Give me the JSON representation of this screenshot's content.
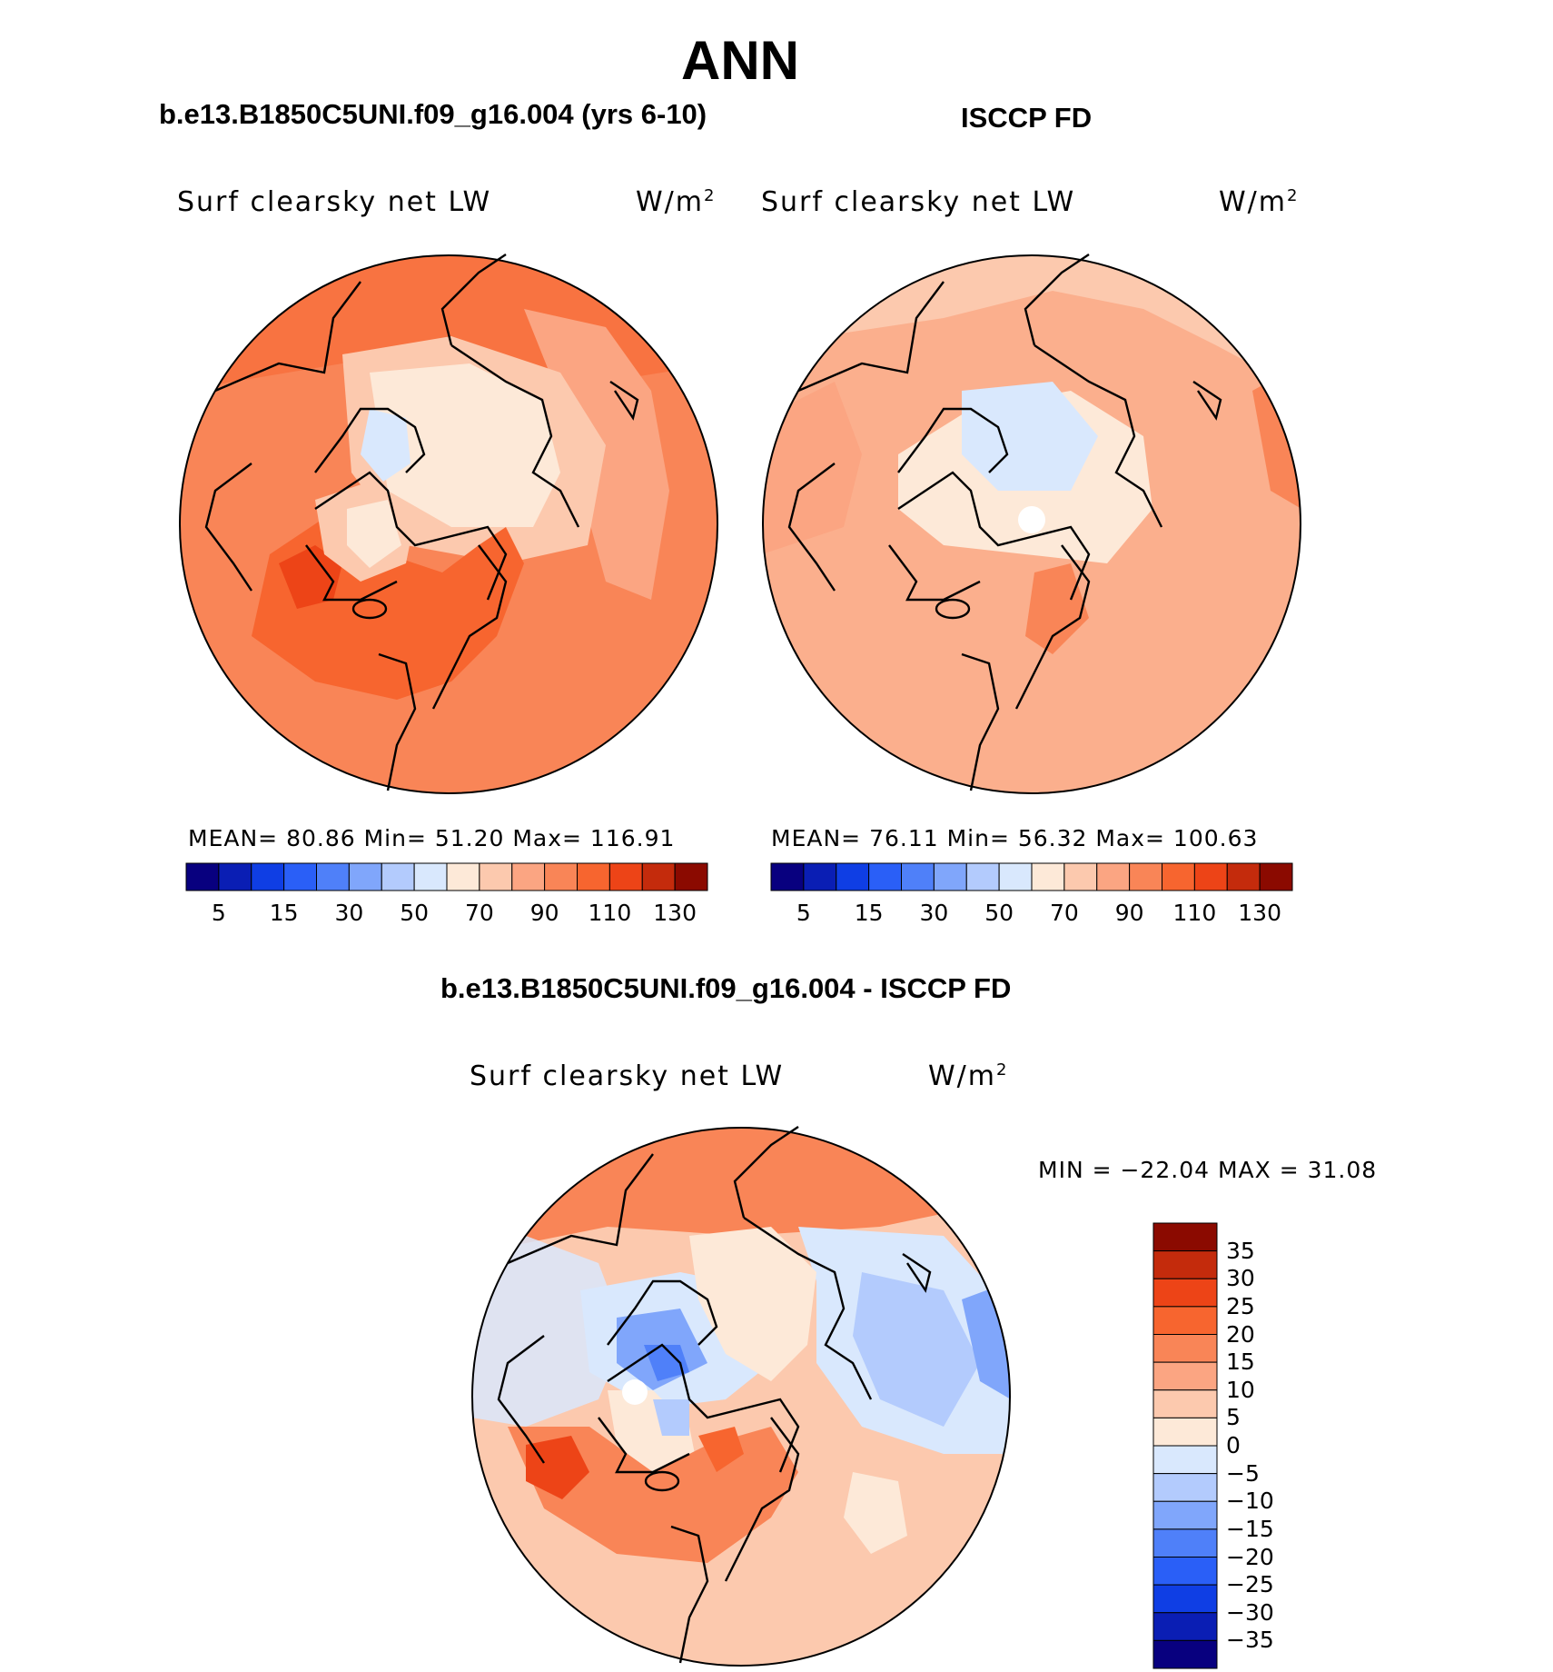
{
  "title": "ANN",
  "colors": {
    "scale": [
      "#08007f",
      "#0a1eb4",
      "#0f3ee4",
      "#2a5ff7",
      "#4f80f9",
      "#80a6fb",
      "#b3cbfd",
      "#d9e8fd",
      "#fde9d8",
      "#fcc9ae",
      "#fba582",
      "#f98557",
      "#f7652f",
      "#ed4417",
      "#c42b0c",
      "#8b0a00"
    ],
    "land": "#000000"
  },
  "panels": [
    {
      "case": "b.e13.B1850C5UNI.f09_g16.004 (yrs 6-10)",
      "variable": "Surf  clearsky  net  LW",
      "units": "W/m",
      "units_sup": "2",
      "stats_text": "MEAN=   80.86   Min=   51.20   Max=  116.91"
    },
    {
      "case": "ISCCP FD",
      "variable": "Surf  clearsky  net  LW",
      "units": "W/m",
      "units_sup": "2",
      "stats_text": "MEAN=   76.11   Min=   56.32   Max=  100.63"
    },
    {
      "case": "b.e13.B1850C5UNI.f09_g16.004 - ISCCP FD",
      "variable": "Surf  clearsky  net  LW",
      "units": "W/m",
      "units_sup": "2",
      "stats_text": "MIN  =  −22.04  MAX  =    31.08"
    }
  ],
  "chart_data": [
    {
      "type": "heatmap",
      "projection": "north polar stereographic",
      "title": "b.e13.B1850C5UNI.f09_g16.004 (yrs 6-10)",
      "variable": "Surf clearsky net LW",
      "units": "W/m2",
      "mean": 80.86,
      "min": 51.2,
      "max": 116.91,
      "colorbar_ticks": [
        "5",
        "15",
        "30",
        "50",
        "70",
        "90",
        "110",
        "130"
      ],
      "colorbar_levels": [
        0,
        5,
        10,
        15,
        20,
        30,
        40,
        50,
        60,
        70,
        80,
        90,
        100,
        110,
        120,
        130,
        140
      ]
    },
    {
      "type": "heatmap",
      "projection": "north polar stereographic",
      "title": "ISCCP FD",
      "variable": "Surf clearsky net LW",
      "units": "W/m2",
      "mean": 76.11,
      "min": 56.32,
      "max": 100.63,
      "colorbar_ticks": [
        "5",
        "15",
        "30",
        "50",
        "70",
        "90",
        "110",
        "130"
      ],
      "colorbar_levels": [
        0,
        5,
        10,
        15,
        20,
        30,
        40,
        50,
        60,
        70,
        80,
        90,
        100,
        110,
        120,
        130,
        140
      ]
    },
    {
      "type": "heatmap",
      "projection": "north polar stereographic",
      "title": "b.e13.B1850C5UNI.f09_g16.004 - ISCCP FD",
      "variable": "Surf clearsky net LW",
      "units": "W/m2",
      "min": -22.04,
      "max": 31.08,
      "colorbar_ticks": [
        "35",
        "30",
        "25",
        "20",
        "15",
        "10",
        "5",
        "0",
        "−5",
        "−10",
        "−15",
        "−20",
        "−25",
        "−30",
        "−35"
      ]
    }
  ]
}
